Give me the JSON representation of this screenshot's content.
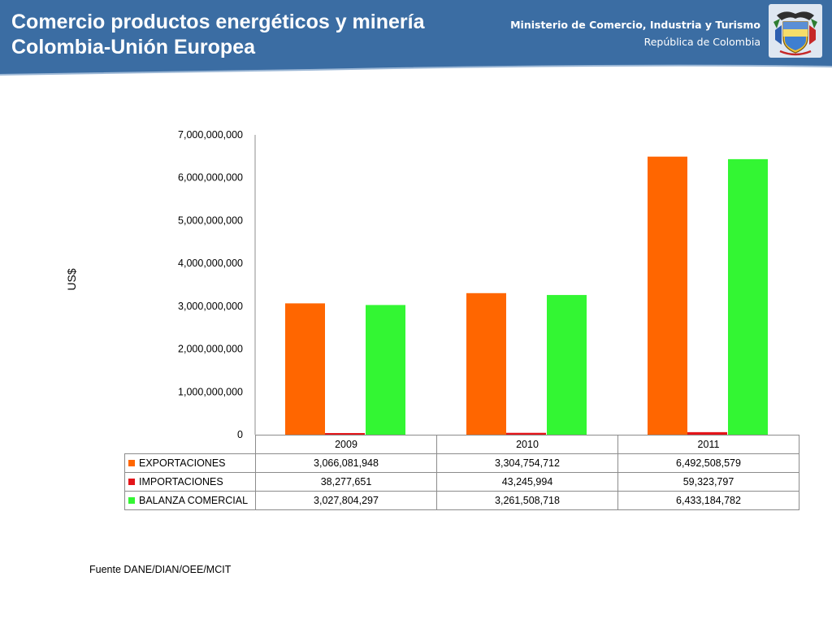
{
  "header": {
    "title_line1": "Comercio productos energéticos y minería",
    "title_line2": "Colombia-Unión Europea",
    "ministry_name": "Ministerio de Comercio, Industria y Turismo",
    "country": "República de Colombia",
    "crest_icon": "colombia-coat-of-arms-icon",
    "band_color": "#3b6da3"
  },
  "chart_data": {
    "type": "bar",
    "categories": [
      "2009",
      "2010",
      "2011"
    ],
    "series": [
      {
        "name": "EXPORTACIONES",
        "color": "#ff6600",
        "values": [
          3066081948,
          3304754712,
          6492508579
        ]
      },
      {
        "name": "IMPORTACIONES",
        "color": "#e3151a",
        "values": [
          38277651,
          43245994,
          59323797
        ]
      },
      {
        "name": "BALANZA COMERCIAL",
        "color": "#33f633",
        "values": [
          3027804297,
          3261508718,
          6433184782
        ]
      }
    ],
    "ylabel": "US$",
    "ylim": [
      0,
      7000000000
    ],
    "yticks": [
      "0",
      "1,000,000,000",
      "2,000,000,000",
      "3,000,000,000",
      "4,000,000,000",
      "5,000,000,000",
      "6,000,000,000",
      "7,000,000,000"
    ],
    "grid": false,
    "legend": "data-table-below"
  },
  "table": {
    "years": [
      "2009",
      "2010",
      "2011"
    ],
    "rows": [
      {
        "label": "EXPORTACIONES",
        "values": [
          "3,066,081,948",
          "3,304,754,712",
          "6,492,508,579"
        ]
      },
      {
        "label": "IMPORTACIONES",
        "values": [
          "38,277,651",
          "43,245,994",
          "59,323,797"
        ]
      },
      {
        "label": "BALANZA COMERCIAL",
        "values": [
          "3,027,804,297",
          "3,261,508,718",
          "6,433,184,782"
        ]
      }
    ]
  },
  "source": "Fuente DANE/DIAN/OEE/MCIT"
}
